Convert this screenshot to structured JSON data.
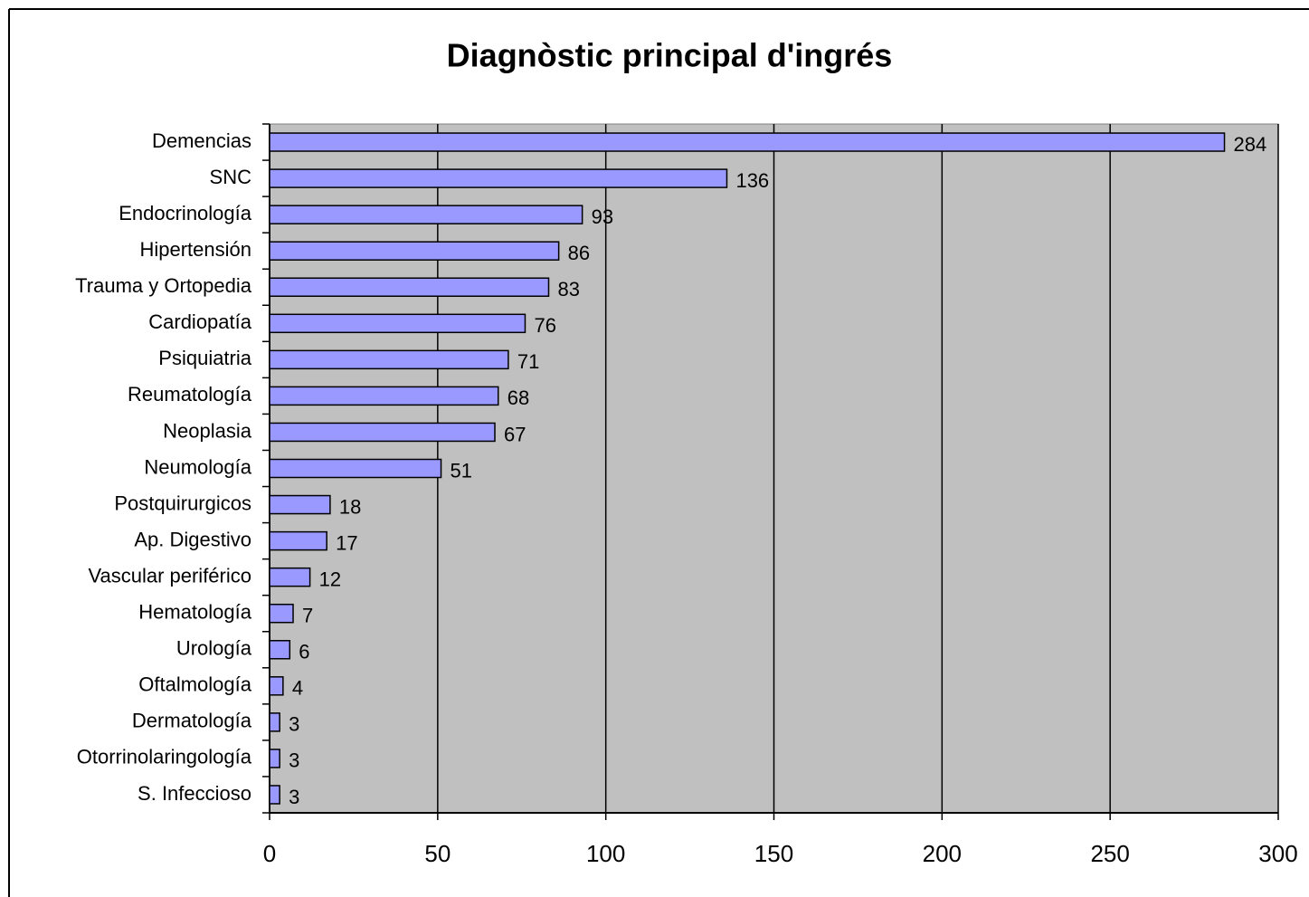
{
  "chart_data": {
    "type": "bar",
    "orientation": "horizontal",
    "title": "Diagnòstic principal d'ingrés",
    "categories": [
      "Demencias",
      "SNC",
      "Endocrinología",
      "Hipertensión",
      "Trauma y Ortopedia",
      "Cardiopatía",
      "Psiquiatria",
      "Reumatología",
      "Neoplasia",
      "Neumología",
      "Postquirurgicos",
      "Ap. Digestivo",
      "Vascular periférico",
      "Hematología",
      "Urología",
      "Oftalmología",
      "Dermatología",
      "Otorrinolaringología",
      "S. Infeccioso"
    ],
    "values": [
      284,
      136,
      93,
      86,
      83,
      76,
      71,
      68,
      67,
      51,
      18,
      17,
      12,
      7,
      6,
      4,
      3,
      3,
      3
    ],
    "color": "#9999ff",
    "xlim": [
      0,
      300
    ],
    "xticks": [
      0,
      50,
      100,
      150,
      200,
      250,
      300
    ],
    "grid": true
  }
}
